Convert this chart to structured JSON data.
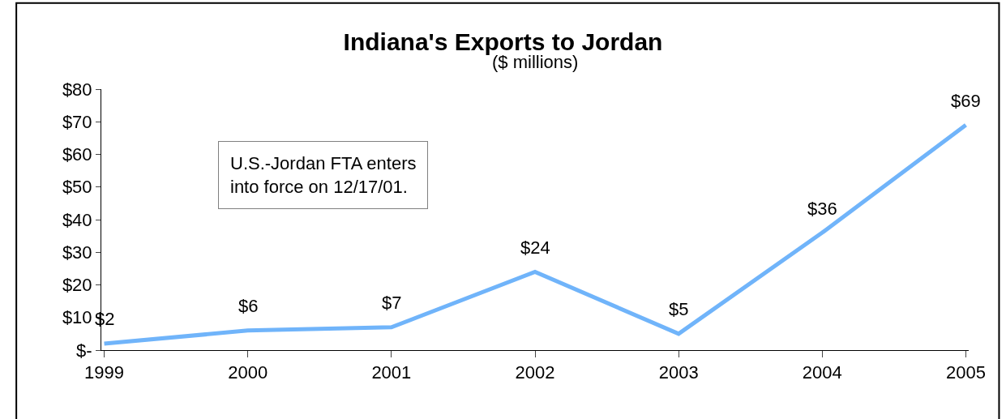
{
  "chart_data": {
    "type": "line",
    "title": "Indiana's Exports to Jordan",
    "subtitle": "($ millions)",
    "categories": [
      "1999",
      "2000",
      "2001",
      "2002",
      "2003",
      "2004",
      "2005"
    ],
    "values": [
      2,
      6,
      7,
      24,
      5,
      36,
      69
    ],
    "value_labels": [
      "$2",
      "$6",
      "$7",
      "$24",
      "$5",
      "$36",
      "$69"
    ],
    "color": "#70b4fa",
    "ylim": [
      0,
      80
    ],
    "yticks": [
      {
        "value": 0,
        "label": "$-"
      },
      {
        "value": 10,
        "label": "$10"
      },
      {
        "value": 20,
        "label": "$20"
      },
      {
        "value": 30,
        "label": "$30"
      },
      {
        "value": 40,
        "label": "$40"
      },
      {
        "value": 50,
        "label": "$50"
      },
      {
        "value": 60,
        "label": "$60"
      },
      {
        "value": 70,
        "label": "$70"
      },
      {
        "value": 80,
        "label": "$80"
      }
    ],
    "annotations": [
      "U.S.-Jordan FTA enters\ninto force on 12/17/01."
    ],
    "legend": false,
    "marker": "none",
    "line_style": "solid"
  }
}
